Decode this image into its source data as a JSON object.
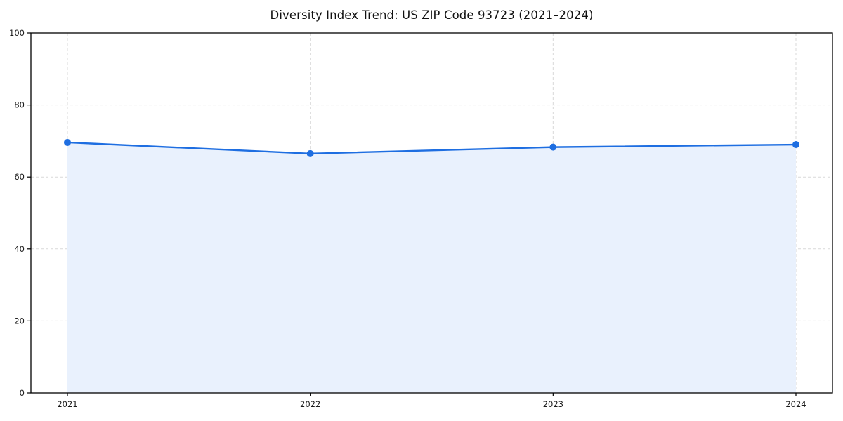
{
  "chart_data": {
    "type": "area",
    "title": "Diversity Index Trend: US ZIP Code 93723 (2021–2024)",
    "categories": [
      "2021",
      "2022",
      "2023",
      "2024"
    ],
    "series": [
      {
        "name": "Diversity Index",
        "values": [
          69.6,
          66.5,
          68.3,
          69.0
        ]
      }
    ],
    "xlabel": "",
    "ylabel": "",
    "ylim": [
      0,
      100
    ],
    "y_ticks": [
      0,
      20,
      40,
      60,
      80,
      100
    ],
    "y_tick_labels": [
      "0",
      "20",
      "40",
      "60",
      "80",
      "100"
    ],
    "grid": true,
    "grid_style": "dashed",
    "legend": "none",
    "colors": {
      "line": "#1e6ee1",
      "marker": "#1e6ee1",
      "fill": "#e9f1fd",
      "grid": "#d9d9d9",
      "axis": "#000000",
      "text": "#1a1a1a",
      "background": "#ffffff"
    }
  }
}
